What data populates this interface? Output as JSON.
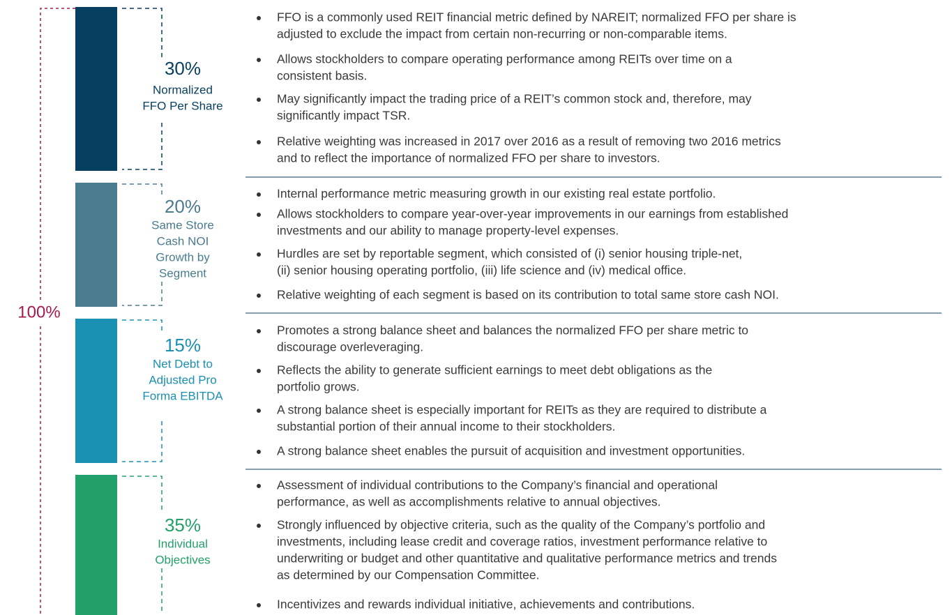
{
  "total": "100%",
  "sections": [
    {
      "percent": "30%",
      "label": [
        "Normalized",
        "FFO Per Share"
      ],
      "bullets": [
        [
          "FFO is a commonly used REIT financial metric defined by NAREIT; normalized FFO per share is",
          "adjusted to exclude the impact from certain non-recurring or non-comparable items."
        ],
        [
          "Allows stockholders to compare operating performance among REITs over time on a",
          "consistent basis."
        ],
        [
          "May significantly impact the trading price of a REIT’s common stock and, therefore, may",
          "significantly impact TSR."
        ],
        [
          "Relative weighting was increased in 2017 over 2016 as a result of removing two 2016 metrics",
          "and to reflect the importance of normalized FFO per share to investors."
        ]
      ]
    },
    {
      "percent": "20%",
      "label": [
        "Same Store",
        "Cash NOI",
        "Growth by",
        "Segment"
      ],
      "bullets": [
        [
          "Internal performance metric measuring growth in our existing real estate portfolio."
        ],
        [
          "Allows stockholders to compare year-over-year improvements in our earnings from established",
          "investments and our ability to manage property-level expenses."
        ],
        [
          "Hurdles are set by reportable segment, which consisted of (i) senior housing triple-net,",
          "(ii) senior housing operating portfolio, (iii) life science and (iv) medical office."
        ],
        [
          "Relative weighting of each segment is based on its contribution to total same store cash NOI."
        ]
      ]
    },
    {
      "percent": "15%",
      "label": [
        "Net Debt to",
        "Adjusted Pro",
        "Forma EBITDA"
      ],
      "bullets": [
        [
          "Promotes a strong balance sheet and balances the normalized FFO per share metric to",
          "discourage overleveraging."
        ],
        [
          "Reflects the ability to generate sufficient earnings to meet debt obligations as the",
          "portfolio grows."
        ],
        [
          "A strong balance sheet is especially important for REITs as they are required to distribute a",
          "substantial portion of their annual income to their stockholders."
        ],
        [
          "A strong balance sheet enables the pursuit of acquisition and investment opportunities."
        ]
      ]
    },
    {
      "percent": "35%",
      "label": [
        "Individual",
        "Objectives"
      ],
      "bullets": [
        [
          "Assessment of individual contributions to the Company’s financial and operational",
          "performance, as well as accomplishments relative to annual objectives."
        ],
        [
          "Strongly influenced by objective criteria, such as the quality of the Company’s portfolio and",
          "investments, including lease credit and coverage ratios, investment performance relative to",
          "underwriting or budget and other quantitative and qualitative performance metrics and trends",
          "as determined by our Compensation Committee."
        ],
        [
          "Incentivizes and rewards individual initiative, achievements and contributions."
        ]
      ]
    }
  ]
}
